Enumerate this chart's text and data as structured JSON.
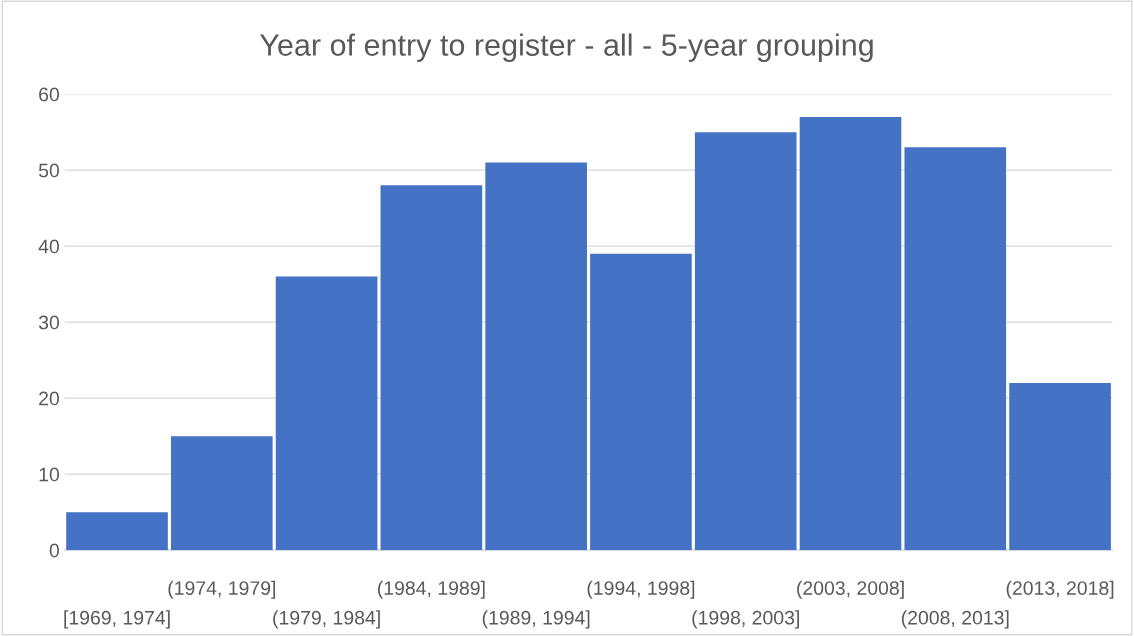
{
  "chart_data": {
    "type": "bar",
    "title": "Year of entry to register - all - 5-year grouping",
    "categories": [
      "[1969, 1974]",
      "(1974, 1979]",
      "(1979, 1984]",
      "(1984, 1989]",
      "(1989, 1994]",
      "(1994, 1998]",
      "(1998, 2003]",
      "(2003, 2008]",
      "(2008, 2013]",
      "(2013, 2018]"
    ],
    "values": [
      5,
      15,
      36,
      48,
      51,
      39,
      55,
      57,
      53,
      22
    ],
    "color": "#4472c4",
    "ylim": [
      0,
      60
    ],
    "yticks": [
      0,
      10,
      20,
      30,
      40,
      50,
      60
    ],
    "grid": "y"
  }
}
